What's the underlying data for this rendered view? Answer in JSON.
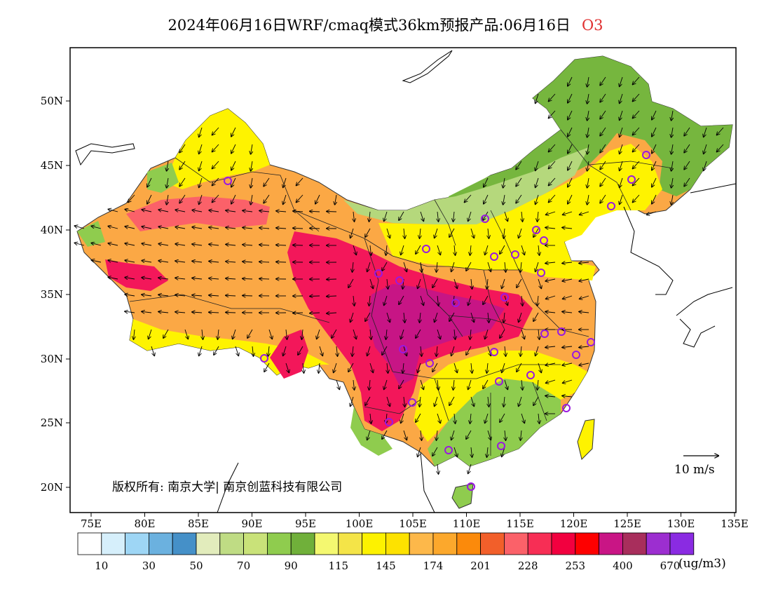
{
  "title": "2024年06月16日WRF/cmaq模式36km预报产品:06月16日",
  "species": "O3",
  "copyright": "版权所有: 南京大学| 南京创蓝科技有限公司",
  "scale_label": "10 m/s",
  "unit": "(ug/m3)",
  "lat_labels": [
    "50N",
    "45N",
    "40N",
    "35N",
    "30N",
    "25N",
    "20N"
  ],
  "lon_labels": [
    "75E",
    "80E",
    "85E",
    "90E",
    "95E",
    "100E",
    "105E",
    "110E",
    "115E",
    "120E",
    "125E",
    "130E",
    "135E"
  ],
  "legend": {
    "colors": [
      "#ffffff",
      "#d6effb",
      "#9ed6f5",
      "#6bb1df",
      "#4590c8",
      "#e2ecbc",
      "#bfdc84",
      "#c9e279",
      "#8fcc4e",
      "#70b03a",
      "#f4f870",
      "#f4e448",
      "#fdf200",
      "#fde200",
      "#fdb84a",
      "#fca82c",
      "#fb8a0b",
      "#f25f2a",
      "#fb6169",
      "#f72e55",
      "#f2003f",
      "#fe0000",
      "#c91585",
      "#a82e5c",
      "#9c2ed0",
      "#8a2be2"
    ],
    "labels": [
      "10",
      "30",
      "50",
      "70",
      "90",
      "115",
      "145",
      "174",
      "201",
      "228",
      "253",
      "400",
      "670"
    ]
  },
  "colors": {
    "green": "#76b63e",
    "light_green": "#b5d87c",
    "yellow": "#fef300",
    "orange": "#fba845",
    "red": "#f3175a",
    "magenta": "#c71585",
    "station": "#9a19e0"
  }
}
